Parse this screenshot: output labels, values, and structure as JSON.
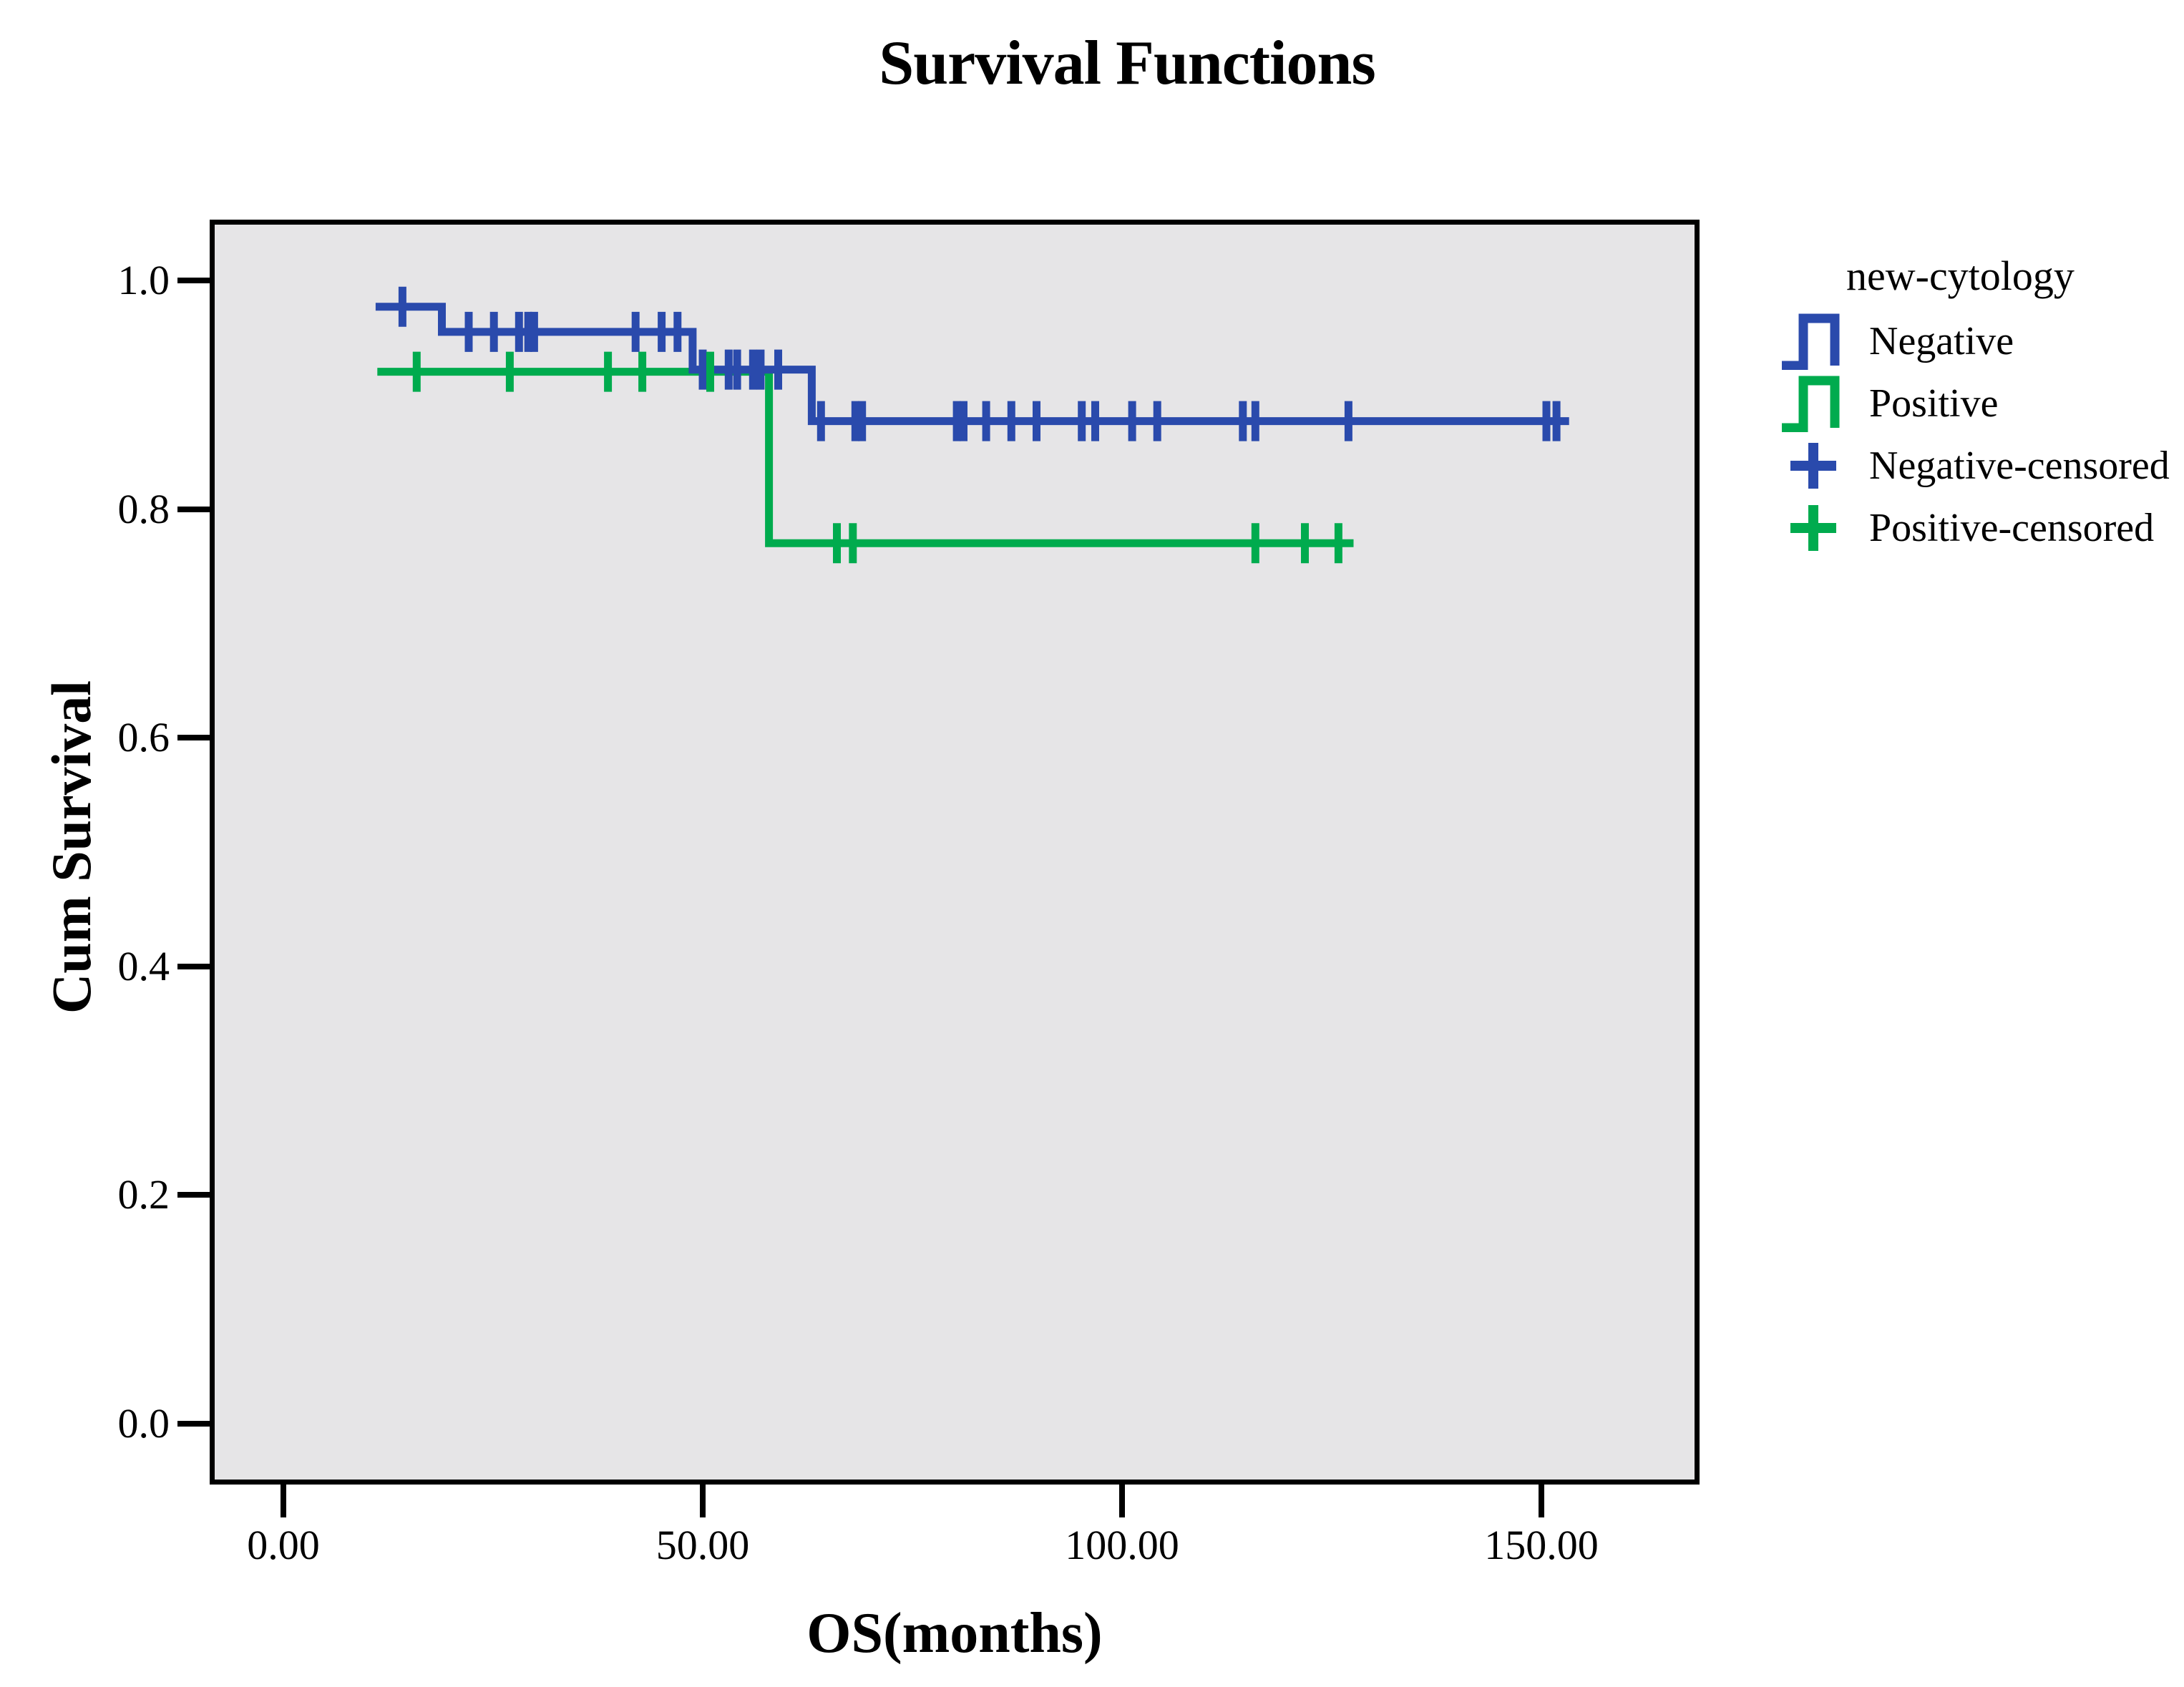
{
  "colors": {
    "negative": "#2a4aac",
    "positive": "#00ab4e",
    "plot_background": "#e6e5e7",
    "frame": "#000000"
  },
  "legend": {
    "title": "new-cytology",
    "items": [
      {
        "label": "Negative",
        "symbol": "step",
        "color": "negative"
      },
      {
        "label": "Positive",
        "symbol": "step",
        "color": "positive"
      },
      {
        "label": "Negative-censored",
        "symbol": "plus",
        "color": "negative"
      },
      {
        "label": "Positive-censored",
        "symbol": "plus",
        "color": "positive"
      }
    ]
  },
  "chart_data": {
    "type": "line",
    "subtype": "kaplan-meier-step",
    "title": "Survival Functions",
    "xlabel": "OS(months)",
    "ylabel": "Cum Survival",
    "xlim": [
      -8.8,
      168.9
    ],
    "ylim": [
      -0.053,
      1.056
    ],
    "xticks": [
      0,
      50,
      100,
      150
    ],
    "xtick_labels": [
      "0.00",
      "50.00",
      "100.00",
      "150.00"
    ],
    "yticks": [
      0.0,
      0.2,
      0.4,
      0.6,
      0.8,
      1.0
    ],
    "ytick_labels": [
      "0.0",
      "0.2",
      "0.4",
      "0.6",
      "0.8",
      "1.0"
    ],
    "grid": false,
    "legend_position": "right-top-outside",
    "series": [
      {
        "name": "Negative",
        "color": "negative",
        "points": [
          [
            11.0,
            0.977
          ],
          [
            18.9,
            0.977
          ],
          [
            18.9,
            0.955
          ],
          [
            48.8,
            0.955
          ],
          [
            48.8,
            0.922
          ],
          [
            63.0,
            0.922
          ],
          [
            63.0,
            0.877
          ],
          [
            153.3,
            0.877
          ]
        ],
        "censored": [
          [
            14.2,
            0.977
          ],
          [
            22.1,
            0.955
          ],
          [
            25.1,
            0.955
          ],
          [
            28.1,
            0.955
          ],
          [
            29.2,
            0.955
          ],
          [
            29.9,
            0.955
          ],
          [
            42.0,
            0.955
          ],
          [
            45.1,
            0.955
          ],
          [
            47.0,
            0.955
          ],
          [
            50.0,
            0.922
          ],
          [
            53.1,
            0.922
          ],
          [
            54.1,
            0.922
          ],
          [
            56.0,
            0.922
          ],
          [
            56.9,
            0.922
          ],
          [
            59.0,
            0.922
          ],
          [
            64.1,
            0.877
          ],
          [
            68.2,
            0.877
          ],
          [
            69.0,
            0.877
          ],
          [
            80.3,
            0.877
          ],
          [
            81.1,
            0.877
          ],
          [
            83.8,
            0.877
          ],
          [
            86.8,
            0.877
          ],
          [
            89.8,
            0.877
          ],
          [
            95.2,
            0.877
          ],
          [
            96.8,
            0.877
          ],
          [
            101.2,
            0.877
          ],
          [
            104.2,
            0.877
          ],
          [
            114.4,
            0.877
          ],
          [
            115.9,
            0.877
          ],
          [
            127.0,
            0.877
          ],
          [
            150.6,
            0.877
          ],
          [
            151.8,
            0.877
          ]
        ]
      },
      {
        "name": "Positive",
        "color": "positive",
        "points": [
          [
            11.2,
            0.922
          ],
          [
            57.9,
            0.922
          ],
          [
            57.9,
            0.772
          ],
          [
            127.6,
            0.772
          ]
        ],
        "censored": [
          [
            15.9,
            0.922
          ],
          [
            27.0,
            0.922
          ],
          [
            38.7,
            0.922
          ],
          [
            42.8,
            0.922
          ],
          [
            50.9,
            0.922
          ],
          [
            66.0,
            0.772
          ],
          [
            67.9,
            0.772
          ],
          [
            115.9,
            0.772
          ],
          [
            121.8,
            0.772
          ],
          [
            125.8,
            0.772
          ]
        ]
      }
    ]
  }
}
